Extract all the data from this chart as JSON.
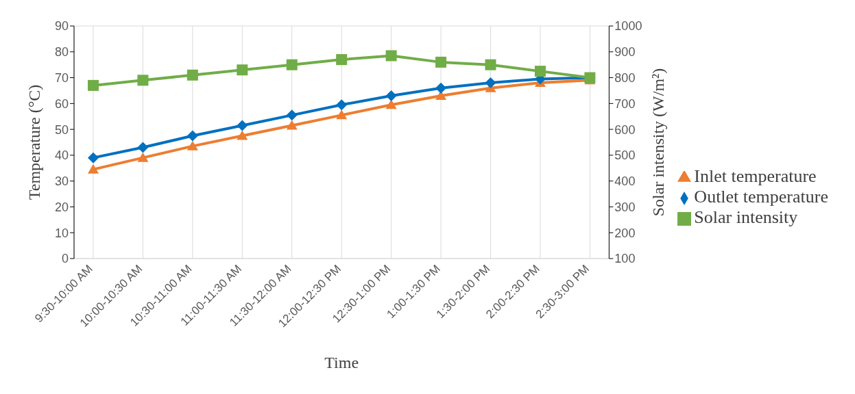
{
  "chart_data": {
    "type": "line",
    "xlabel": "Time",
    "ylabel": "Temperature (°C)",
    "y2label": "Solar intensity (W/m²)",
    "categories": [
      "9:30-10:00 AM",
      "10:00-10:30 AM",
      "10:30-11:00 AM",
      "11:00-11:30 AM",
      "11:30-12:00 AM",
      "12:00-12:30 PM",
      "12:30-1:00 PM",
      "1:00-1:30 PM",
      "1:30-2:00 PM",
      "2:00-2:30 PM",
      "2:30-3:00 PM"
    ],
    "series": [
      {
        "name": "Inlet temperature",
        "color": "#ed7d31",
        "marker": "triangle",
        "values": [
          34.5,
          39,
          43.5,
          47.5,
          51.5,
          55.5,
          59.5,
          63,
          66,
          68,
          69
        ]
      },
      {
        "name": "Outlet temperature",
        "color": "#0070c0",
        "marker": "diamond",
        "values": [
          39,
          43,
          47.5,
          51.5,
          55.5,
          59.5,
          63,
          66,
          68,
          69.5,
          70
        ]
      },
      {
        "name": "Solar intensity",
        "color": "#70ad47",
        "marker": "square",
        "axis": "y2",
        "values": [
          770,
          790,
          810,
          830,
          850,
          870,
          885,
          860,
          850,
          825,
          800
        ]
      }
    ],
    "ylim": [
      0,
      90
    ],
    "yticks": [
      0,
      10,
      20,
      30,
      40,
      50,
      60,
      70,
      80,
      90
    ],
    "y2lim": [
      100,
      1000
    ],
    "y2ticks": [
      100,
      200,
      300,
      400,
      500,
      600,
      700,
      800,
      900,
      1000
    ],
    "grid": true,
    "legend": "right",
    "line_style": "solid"
  }
}
